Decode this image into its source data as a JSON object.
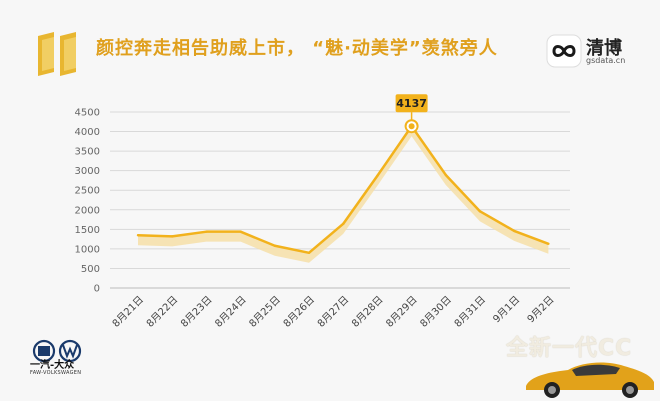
{
  "header": {
    "title": "颜控奔走相告助威上市， “魅·动美学”羡煞旁人"
  },
  "brand": {
    "name": "清博",
    "domain": "gsdata.cn"
  },
  "footer": {
    "maker_logo_text": "一汽-大众",
    "maker_logo_sub": "FAW-VOLKSWAGEN",
    "promo_text": "全新一代CC"
  },
  "colors": {
    "accent": "#f2b21c",
    "shadow": "#f6dfa8",
    "title": "#e0a01e"
  },
  "chart_data": {
    "type": "line",
    "categories": [
      "8月21日",
      "8月22日",
      "8月23日",
      "8月24日",
      "8月25日",
      "8月26日",
      "8月27日",
      "8月28日",
      "8月29日",
      "8月30日",
      "8月31日",
      "9月1日",
      "9月2日"
    ],
    "values": [
      1350,
      1320,
      1440,
      1440,
      1080,
      900,
      1640,
      2870,
      4137,
      2890,
      1960,
      1460,
      1130
    ],
    "ylim": [
      0,
      4500
    ],
    "yticks": [
      0,
      500,
      1000,
      1500,
      2000,
      2500,
      3000,
      3500,
      4000,
      4500
    ],
    "grid": true,
    "annotation": {
      "category": "8月29日",
      "value": 4137,
      "label": "4137"
    },
    "xlabel": "",
    "ylabel": "",
    "title": ""
  }
}
